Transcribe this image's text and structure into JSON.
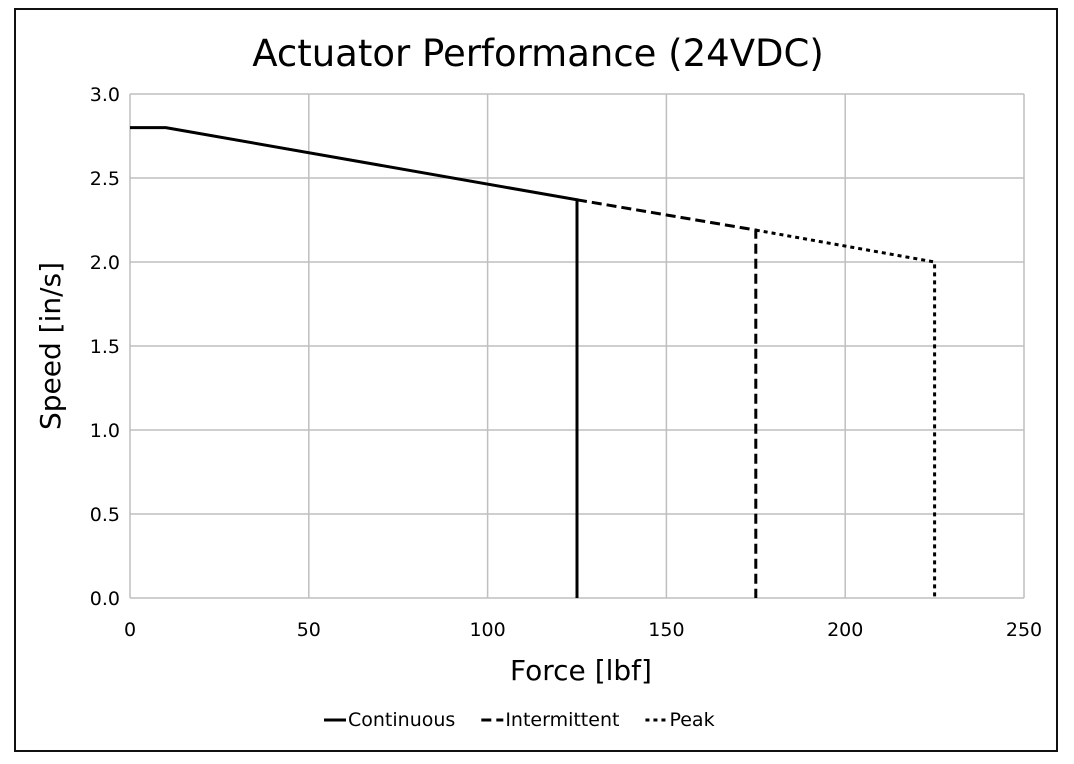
{
  "chart_data": {
    "type": "line",
    "title": "Actuator Performance (24VDC)",
    "xlabel": "Force [lbf]",
    "ylabel": "Speed [in/s]",
    "xlim": [
      0,
      250
    ],
    "ylim": [
      0,
      3.0
    ],
    "x_ticks": [
      "0",
      "50",
      "100",
      "150",
      "200",
      "250"
    ],
    "y_ticks": [
      "0.0",
      "0.5",
      "1.0",
      "1.5",
      "2.0",
      "2.5",
      "3.0"
    ],
    "grid": true,
    "legend_position": "bottom",
    "series": [
      {
        "name": "Continuous",
        "line_style": "solid",
        "color": "#000000",
        "points": [
          [
            0,
            2.8
          ],
          [
            10,
            2.8
          ],
          [
            125,
            2.37
          ],
          [
            125,
            0
          ]
        ]
      },
      {
        "name": "Intermittent",
        "line_style": "dashed",
        "color": "#000000",
        "points": [
          [
            125,
            2.37
          ],
          [
            175,
            2.19
          ],
          [
            175,
            0
          ]
        ]
      },
      {
        "name": "Peak",
        "line_style": "dotted",
        "color": "#000000",
        "points": [
          [
            175,
            2.19
          ],
          [
            225,
            2.0
          ],
          [
            225,
            0
          ]
        ]
      }
    ]
  }
}
